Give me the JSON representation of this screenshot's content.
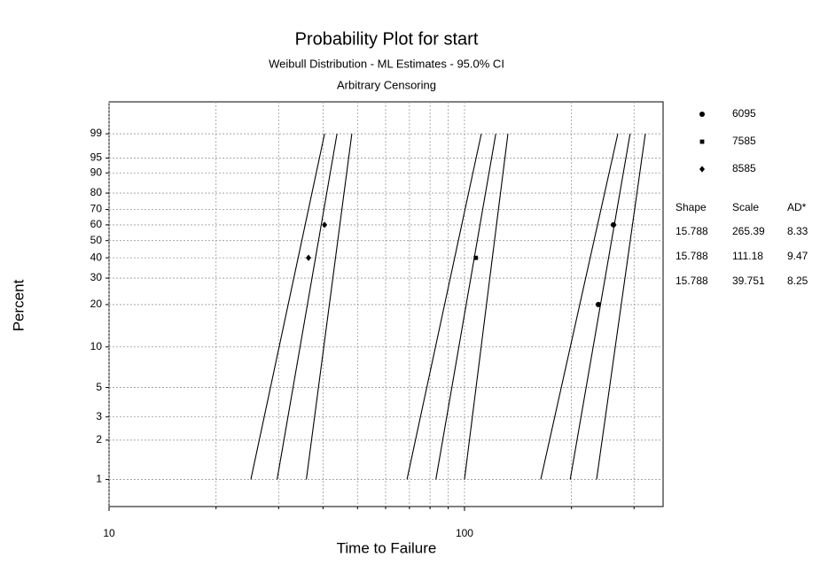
{
  "chart_data": {
    "type": "weibull-probability",
    "title": "Probability Plot for start",
    "subtitle": [
      "Weibull Distribution - ML Estimates - 95.0% CI",
      "Arbitrary Censoring"
    ],
    "x_label": "Time to Failure",
    "y_label": "Percent",
    "xscale": "log",
    "yscale": "weibull",
    "grid": true,
    "xlim": [
      10,
      362
    ],
    "ylim": [
      0.62,
      99.97
    ],
    "xticks": [
      10,
      100
    ],
    "xminor": [
      20,
      30,
      40,
      50,
      60,
      70,
      80,
      90,
      200,
      300
    ],
    "yticks": [
      1,
      2,
      3,
      5,
      10,
      20,
      30,
      40,
      50,
      60,
      70,
      80,
      90,
      95,
      99
    ],
    "stats_headers": [
      "Shape",
      "Scale",
      "AD*"
    ],
    "series": [
      {
        "name": "6095",
        "marker": "circle",
        "shape": 15.788,
        "scale": 265.39,
        "ad": 8.33,
        "points": {
          "x": [
            238,
            262.4
          ],
          "y": [
            20,
            60
          ]
        },
        "ci_lower": {
          "x": [
            163.9,
            270
          ],
          "y": [
            1,
            99
          ]
        },
        "ci_upper": {
          "x": [
            235.3,
            322.6
          ],
          "y": [
            1,
            99
          ]
        }
      },
      {
        "name": "7585",
        "marker": "square",
        "shape": 15.788,
        "scale": 111.18,
        "ad": 9.47,
        "points": {
          "x": [
            107.6
          ],
          "y": [
            40
          ]
        },
        "ci_lower": {
          "x": [
            68.9,
            111.5
          ],
          "y": [
            1,
            99
          ]
        },
        "ci_upper": {
          "x": [
            100,
            132.5
          ],
          "y": [
            1,
            99
          ]
        }
      },
      {
        "name": "8585",
        "marker": "diamond",
        "shape": 15.788,
        "scale": 39.751,
        "ad": 8.25,
        "points": {
          "x": [
            36.4,
            40.4
          ],
          "y": [
            40,
            60
          ]
        },
        "ci_lower": {
          "x": [
            25.06,
            40.4
          ],
          "y": [
            1,
            99
          ]
        },
        "ci_upper": {
          "x": [
            35.9,
            48.2
          ],
          "y": [
            1,
            99
          ]
        }
      }
    ]
  }
}
